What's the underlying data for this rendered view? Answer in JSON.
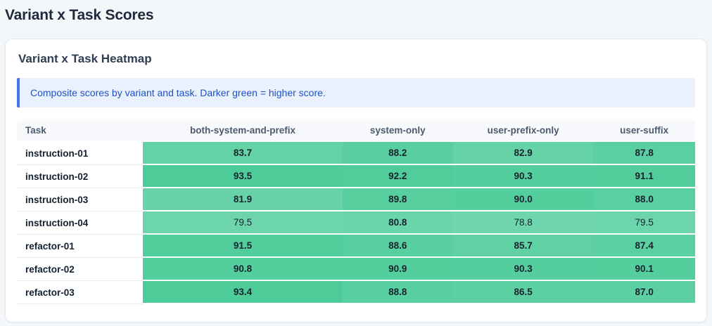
{
  "page": {
    "title": "Variant x Task Scores"
  },
  "card": {
    "title": "Variant x Task Heatmap",
    "callout_text": "Composite scores by variant and task. Darker green = higher score."
  },
  "colors": {
    "page_background": "#F3F7FA",
    "callout_background": "#E9F1FC",
    "callout_accent": "#3D78EC",
    "callout_text": "#2150C7",
    "header_background": "#F7F9FC"
  },
  "chart_data": {
    "type": "heatmap",
    "title": "Variant x Task Heatmap",
    "columns": [
      "Task",
      "both-system-and-prefix",
      "system-only",
      "user-prefix-only",
      "user-suffix"
    ],
    "rows": [
      {
        "task": "instruction-01",
        "values": [
          83.7,
          88.2,
          82.9,
          87.8
        ]
      },
      {
        "task": "instruction-02",
        "values": [
          93.5,
          92.2,
          90.3,
          91.1
        ]
      },
      {
        "task": "instruction-03",
        "values": [
          81.9,
          89.8,
          90.0,
          88.0
        ]
      },
      {
        "task": "instruction-04",
        "values": [
          79.5,
          80.8,
          78.8,
          79.5
        ]
      },
      {
        "task": "refactor-01",
        "values": [
          91.5,
          88.6,
          85.7,
          87.4
        ]
      },
      {
        "task": "refactor-02",
        "values": [
          90.8,
          90.9,
          90.3,
          90.1
        ]
      },
      {
        "task": "refactor-03",
        "values": [
          93.4,
          88.8,
          86.5,
          87.0
        ]
      }
    ],
    "color_scale": {
      "light": "#6FD5AE",
      "dark": "#4DCC99",
      "meaning": "darker green = higher score"
    },
    "bold_threshold": 80,
    "value_decimals": 1
  }
}
